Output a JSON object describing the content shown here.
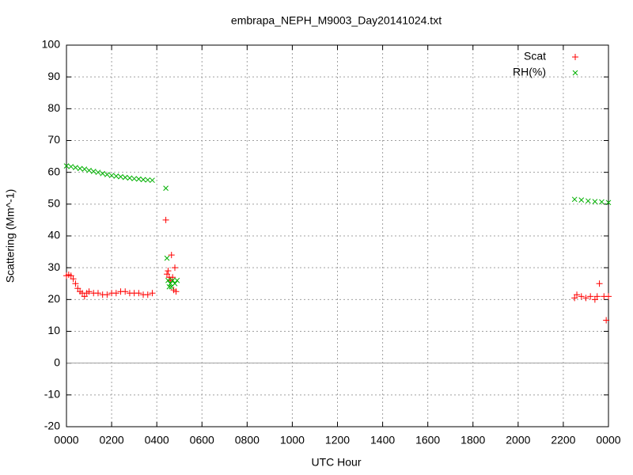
{
  "chart_data": {
    "type": "scatter",
    "title": "embrapa_NEPH_M9003_Day20141024.txt",
    "xlabel": "UTC Hour",
    "ylabel": "Scattering (Mm^-1)",
    "xlim": [
      0,
      24
    ],
    "ylim": [
      -20,
      100
    ],
    "xticks": [
      {
        "value": 0,
        "label": "0000"
      },
      {
        "value": 2,
        "label": "0200"
      },
      {
        "value": 4,
        "label": "0400"
      },
      {
        "value": 6,
        "label": "0600"
      },
      {
        "value": 8,
        "label": "0800"
      },
      {
        "value": 10,
        "label": "1000"
      },
      {
        "value": 12,
        "label": "1200"
      },
      {
        "value": 14,
        "label": "1400"
      },
      {
        "value": 16,
        "label": "1600"
      },
      {
        "value": 18,
        "label": "1800"
      },
      {
        "value": 20,
        "label": "2000"
      },
      {
        "value": 22,
        "label": "2200"
      },
      {
        "value": 24,
        "label": "0000"
      }
    ],
    "yticks": [
      -20,
      -10,
      0,
      10,
      20,
      30,
      40,
      50,
      60,
      70,
      80,
      90,
      100
    ],
    "grid": true,
    "legend": "upper right",
    "series": [
      {
        "name": "Scat",
        "color": "#ff0000",
        "marker": "+",
        "x": [
          0,
          0.1,
          0.2,
          0.3,
          0.4,
          0.5,
          0.6,
          0.7,
          0.8,
          0.9,
          1.0,
          1.2,
          1.4,
          1.6,
          1.8,
          2.0,
          2.2,
          2.4,
          2.6,
          2.8,
          3.0,
          3.2,
          3.4,
          3.6,
          3.8,
          4.4,
          4.45,
          4.5,
          4.55,
          4.6,
          4.65,
          4.7,
          4.75,
          4.8,
          4.85,
          22.5,
          22.6,
          22.8,
          23.0,
          23.2,
          23.4,
          23.5,
          23.6,
          23.8,
          23.9,
          24.0
        ],
        "values": [
          27.5,
          27.8,
          27.5,
          26.5,
          25,
          23.5,
          22.5,
          22,
          21,
          22,
          22.5,
          22,
          22,
          21.5,
          21.5,
          22,
          22,
          22.5,
          22.5,
          22,
          22,
          22,
          21.5,
          21.5,
          22,
          45,
          28,
          29,
          27,
          26,
          34,
          27,
          23,
          30,
          22.5,
          20.5,
          21.5,
          21,
          20.5,
          21,
          20,
          21,
          25,
          21,
          13.5,
          21
        ]
      },
      {
        "name": "RH(%)",
        "color": "#00b000",
        "marker": "x",
        "x": [
          0,
          0.2,
          0.4,
          0.6,
          0.8,
          1.0,
          1.2,
          1.4,
          1.6,
          1.8,
          2.0,
          2.2,
          2.4,
          2.6,
          2.8,
          3.0,
          3.2,
          3.4,
          3.6,
          3.8,
          4.4,
          4.45,
          4.5,
          4.55,
          4.6,
          4.65,
          4.7,
          4.8,
          4.9,
          22.5,
          22.8,
          23.1,
          23.4,
          23.7,
          24.0
        ],
        "values": [
          62,
          61.8,
          61.5,
          61.2,
          61,
          60.6,
          60.3,
          60,
          59.6,
          59.3,
          59,
          58.8,
          58.6,
          58.4,
          58.2,
          58,
          57.9,
          57.7,
          57.6,
          57.5,
          55,
          33,
          26,
          24,
          25,
          24,
          26,
          25,
          26,
          51.5,
          51.3,
          51,
          50.8,
          50.7,
          50.5
        ]
      }
    ]
  }
}
